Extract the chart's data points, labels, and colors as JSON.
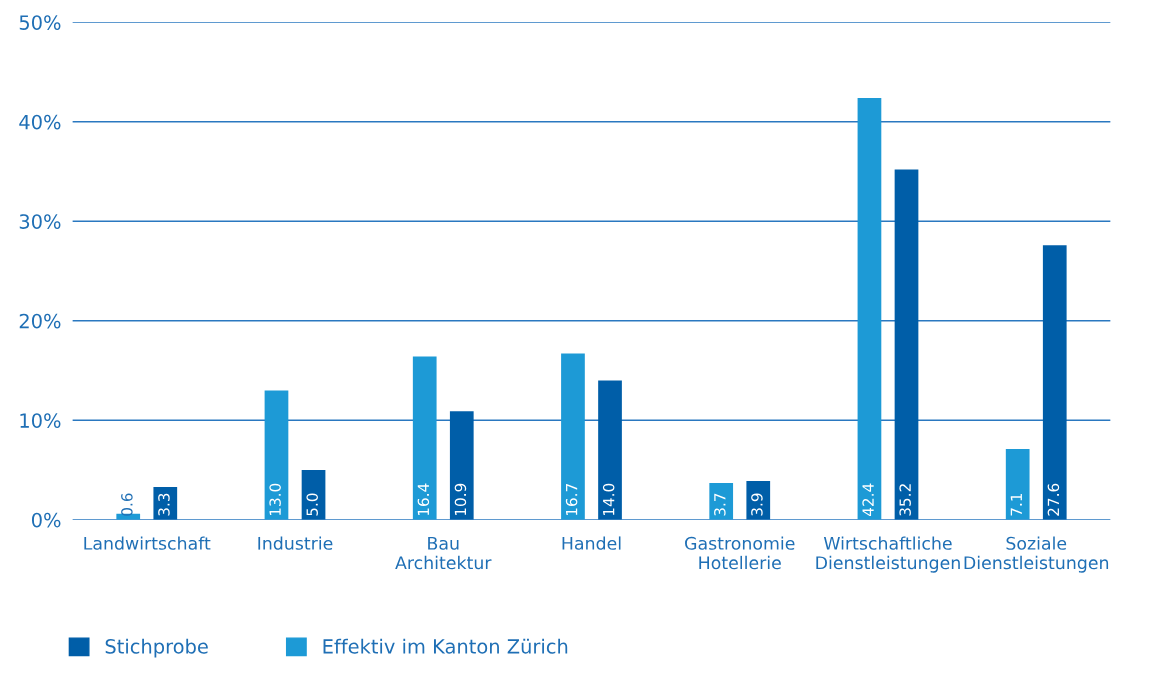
{
  "chart_data": {
    "type": "bar",
    "categories": [
      "Landwirtschaft",
      "Industrie",
      "Bau\nArchitektur",
      "Handel",
      "Gastronomie\nHotellerie",
      "Wirtschaftliche\nDienstleistungen",
      "Soziale\nDienstleistungen"
    ],
    "series": [
      {
        "name": "Stichprobe",
        "color": "#005ea8",
        "values": [
          3.3,
          5.0,
          10.9,
          14.0,
          3.9,
          35.2,
          27.6
        ],
        "value_labels": [
          "3.3",
          "5.0",
          "10.9",
          "14.0",
          "3.9",
          "35.2",
          "27.6"
        ]
      },
      {
        "name": "Effektiv im Kanton Zürich",
        "color": "#1d9ad6",
        "values": [
          0.6,
          13.0,
          16.4,
          16.7,
          3.7,
          42.4,
          7.1
        ],
        "value_labels": [
          "0.6",
          "13.0",
          "16.4",
          "16.7",
          "3.7",
          "42.4",
          "7.1"
        ]
      }
    ],
    "ylim": [
      0,
      50
    ],
    "yticks": [
      {
        "value": 0,
        "label": "0%"
      },
      {
        "value": 10,
        "label": "10%"
      },
      {
        "value": 20,
        "label": "20%"
      },
      {
        "value": 30,
        "label": "30%"
      },
      {
        "value": 40,
        "label": "40%"
      },
      {
        "value": 50,
        "label": "50%"
      }
    ],
    "grid": "y",
    "legend": "bottom left"
  }
}
